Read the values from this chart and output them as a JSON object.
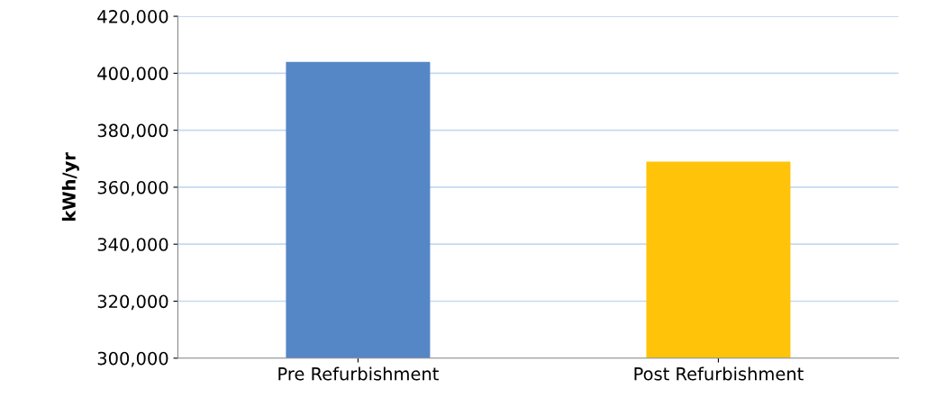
{
  "chart_data": {
    "type": "bar",
    "ylabel": "kWh/yr",
    "categories": [
      "Pre Refurbishment",
      "Post Refurbishment"
    ],
    "values": [
      404000,
      369000
    ],
    "colors": [
      "#5587c6",
      "#ffc409"
    ],
    "ylim": [
      300000,
      420000
    ],
    "yticks": [
      {
        "value": 300000,
        "label": "300,000"
      },
      {
        "value": 320000,
        "label": "320,000"
      },
      {
        "value": 340000,
        "label": "340,000"
      },
      {
        "value": 360000,
        "label": "360,000"
      },
      {
        "value": 380000,
        "label": "380,000"
      },
      {
        "value": 400000,
        "label": "400,000"
      },
      {
        "value": 420000,
        "label": "420,000"
      }
    ],
    "grid": "y"
  }
}
